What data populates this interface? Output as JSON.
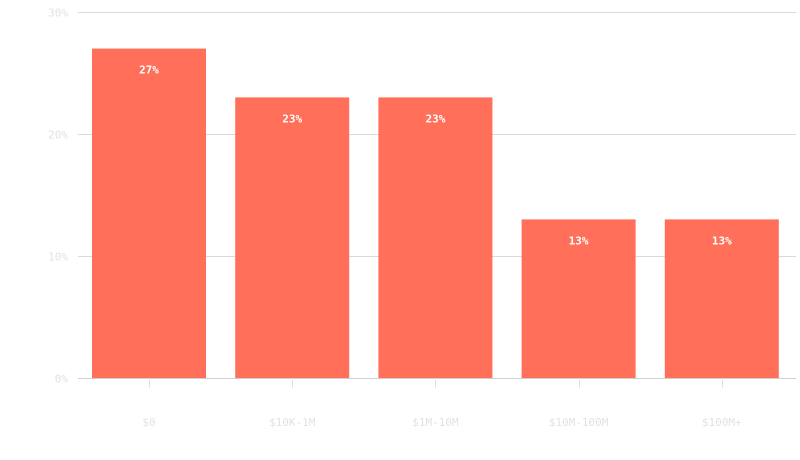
{
  "chart_data": {
    "type": "bar",
    "categories": [
      "$0",
      "$10K-1M",
      "$1M-10M",
      "$10M-100M",
      "$100M+"
    ],
    "values": [
      27,
      23,
      23,
      13,
      13
    ],
    "data_labels": [
      "27%",
      "23%",
      "23%",
      "13%",
      "13%"
    ],
    "y_ticks": [
      {
        "value": 0,
        "label": "0%"
      },
      {
        "value": 10,
        "label": "10%"
      },
      {
        "value": 20,
        "label": "20%"
      },
      {
        "value": 30,
        "label": "30%"
      }
    ],
    "ylim": [
      0,
      30
    ],
    "grid": true,
    "legend": "none",
    "title": "",
    "xlabel": "",
    "ylabel": "",
    "bar_color": "#ff6f59"
  }
}
